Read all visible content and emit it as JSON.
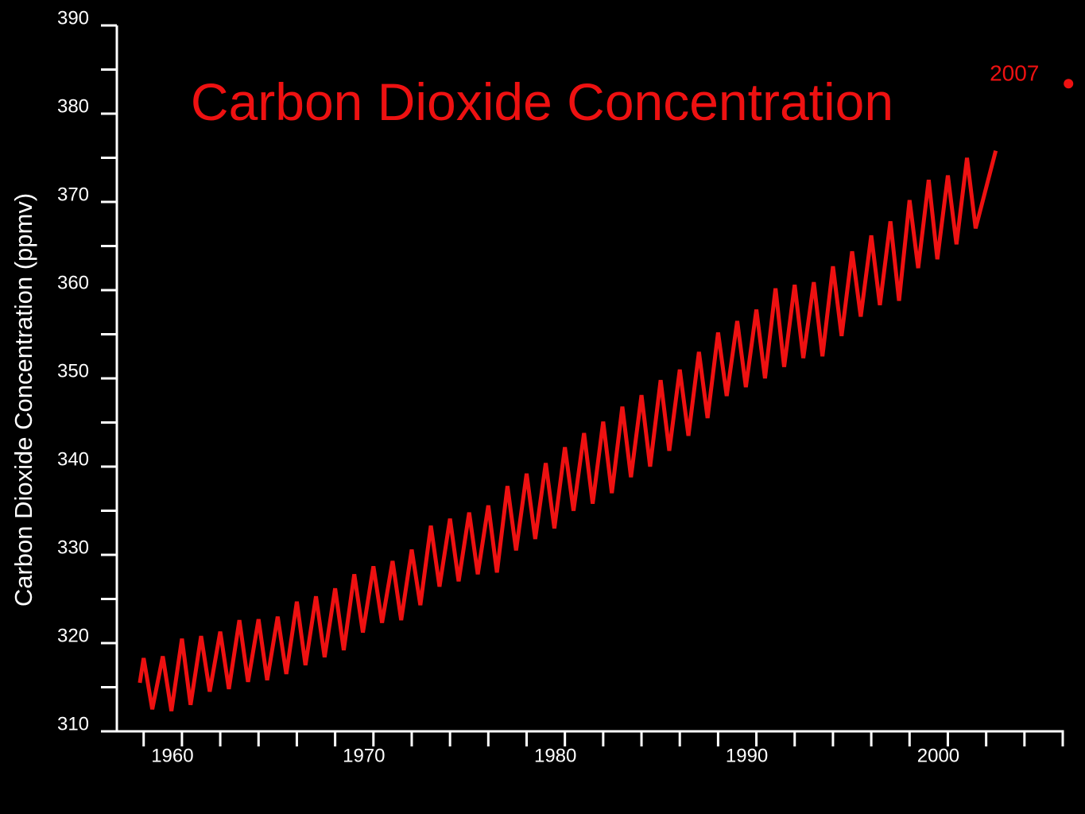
{
  "chart_data": {
    "type": "line",
    "title": "Carbon Dioxide Concentration",
    "y_label": "Carbon Dioxide Concentration (ppmv)",
    "color": "#ee1111",
    "xlim": [
      1956.6,
      2006
    ],
    "ylim": [
      310,
      390
    ],
    "xticks": [
      1960,
      1970,
      1980,
      1990,
      2000
    ],
    "xminor_ticks": [
      1958,
      1962,
      1964,
      1966,
      1968,
      1972,
      1974,
      1976,
      1978,
      1982,
      1984,
      1986,
      1988,
      1992,
      1994,
      1996,
      1998,
      2002,
      2004,
      2006
    ],
    "yticks": [
      310,
      320,
      330,
      340,
      350,
      360,
      370,
      380,
      390
    ],
    "yminor_ticks": [
      315,
      325,
      335,
      345,
      355,
      365,
      375,
      385
    ],
    "annotation": {
      "text": "2007",
      "x": 2006.3,
      "y": 383.4
    },
    "x": [
      1957.8,
      1958.0,
      1958.45,
      1959.0,
      1959.45,
      1960.0,
      1960.45,
      1961.0,
      1961.45,
      1962.0,
      1962.45,
      1963.0,
      1963.45,
      1964.0,
      1964.45,
      1965.0,
      1965.45,
      1966.0,
      1966.45,
      1967.0,
      1967.45,
      1968.0,
      1968.45,
      1969.0,
      1969.45,
      1970.0,
      1970.45,
      1971.0,
      1971.45,
      1972.0,
      1972.45,
      1973.0,
      1973.45,
      1974.0,
      1974.45,
      1975.0,
      1975.45,
      1976.0,
      1976.45,
      1977.0,
      1977.45,
      1978.0,
      1978.45,
      1979.0,
      1979.45,
      1980.0,
      1980.45,
      1981.0,
      1981.45,
      1982.0,
      1982.45,
      1983.0,
      1983.45,
      1984.0,
      1984.45,
      1985.0,
      1985.45,
      1986.0,
      1986.45,
      1987.0,
      1987.45,
      1988.0,
      1988.45,
      1989.0,
      1989.45,
      1990.0,
      1990.45,
      1991.0,
      1991.45,
      1992.0,
      1992.45,
      1993.0,
      1993.45,
      1994.0,
      1994.45,
      1995.0,
      1995.45,
      1996.0,
      1996.45,
      1997.0,
      1997.45,
      1998.0,
      1998.45,
      1999.0,
      1999.45,
      2000.0,
      2000.45,
      2001.0,
      2001.45,
      2002.5
    ],
    "values": [
      315.5,
      318.3,
      312.5,
      318.5,
      312.3,
      320.5,
      313.0,
      320.8,
      314.5,
      321.3,
      314.8,
      322.6,
      315.6,
      322.7,
      315.8,
      323.0,
      316.5,
      324.7,
      317.5,
      325.3,
      318.4,
      326.2,
      319.2,
      327.8,
      321.2,
      328.7,
      322.3,
      329.3,
      322.6,
      330.6,
      324.3,
      333.3,
      326.4,
      334.1,
      327.0,
      334.8,
      327.8,
      335.6,
      328.0,
      337.8,
      330.5,
      339.2,
      331.8,
      340.4,
      333.0,
      342.2,
      335.0,
      343.8,
      335.8,
      345.1,
      337.0,
      346.8,
      338.8,
      348.1,
      340.0,
      349.8,
      341.8,
      351.0,
      343.5,
      353.0,
      345.5,
      355.2,
      348.0,
      356.5,
      349.0,
      357.8,
      350.0,
      360.2,
      351.3,
      360.6,
      352.3,
      360.9,
      352.5,
      362.7,
      354.8,
      364.4,
      357.0,
      366.2,
      358.3,
      367.8,
      358.8,
      370.2,
      362.5,
      372.5,
      363.5,
      373.0,
      365.2,
      375.0,
      367.0,
      375.8
    ]
  }
}
